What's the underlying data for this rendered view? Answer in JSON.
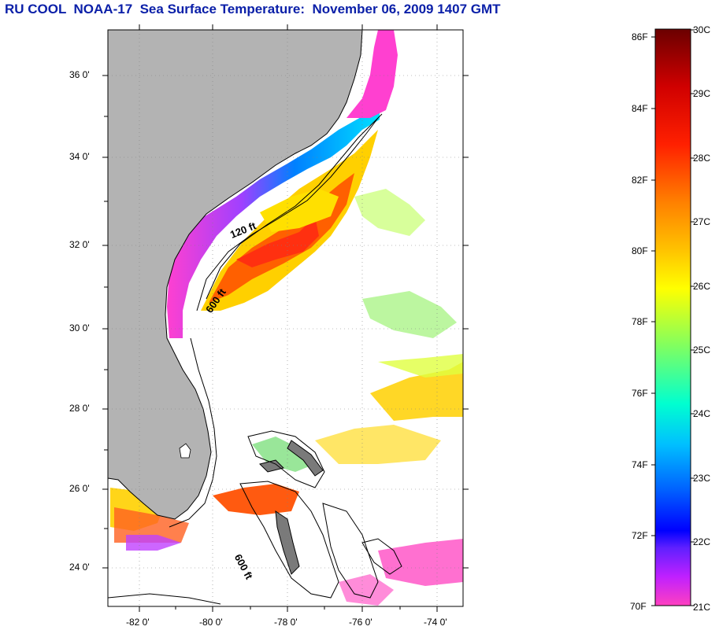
{
  "header": {
    "title": "RU COOL  NOAA-17  Sea Surface Temperature:  November 06, 2009 1407 GMT"
  },
  "map": {
    "lat_ticks": [
      "36 0'",
      "34 0'",
      "32 0'",
      "30 0'",
      "28 0'",
      "26 0'",
      "24 0'"
    ],
    "lon_ticks": [
      "-82 0'",
      "-80 0'",
      "-78 0'",
      "-76 0'",
      "-74 0'"
    ],
    "contour_labels": [
      "120 ft",
      "600 ft",
      "600 ft"
    ],
    "colors": {
      "land": "#b3b3b3",
      "ocean_nodata": "#ffffff",
      "coast_outline": "#000000"
    }
  },
  "colorbar": {
    "fahrenheit_labels": [
      "86F",
      "84F",
      "82F",
      "80F",
      "78F",
      "76F",
      "74F",
      "72F",
      "70F"
    ],
    "celsius_labels": [
      "30C",
      "29C",
      "28C",
      "27C",
      "26C",
      "25C",
      "24C",
      "23C",
      "22C",
      "21C"
    ],
    "gradient_stops": [
      "#800000",
      "#ff0000",
      "#ff7f00",
      "#ffff00",
      "#80ff40",
      "#00ffff",
      "#0080ff",
      "#0000ff",
      "#8000ff",
      "#ff00ff",
      "#ff40c0"
    ]
  }
}
